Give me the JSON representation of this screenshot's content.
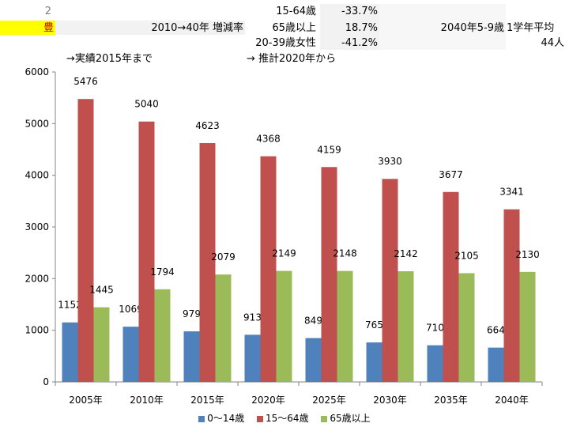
{
  "sheet": {
    "row1": {
      "num": "2",
      "label": "15-64歳",
      "value": "-33.7%"
    },
    "row2": {
      "name": "豊",
      "title": "2010→40年 増減率",
      "label": "65歳以上",
      "value": "18.7%",
      "extra_label": "2040年5-9歳",
      "extra_title": "1学年平均"
    },
    "row3": {
      "label": "20-39歳女性",
      "value": "-41.2%",
      "extra_value": "44人"
    },
    "note_left": "→実績2015年まで",
    "note_right": "→ 推計2020年から"
  },
  "colors": {
    "highlight": "#ffff00",
    "s0": "#4f81bd",
    "s1": "#c0504d",
    "s2": "#9bbb59"
  },
  "chart_data": {
    "type": "bar",
    "categories": [
      "2005年",
      "2010年",
      "2015年",
      "2020年",
      "2025年",
      "2030年",
      "2035年",
      "2040年"
    ],
    "series": [
      {
        "name": "0～14歳",
        "values": [
          1152,
          1069,
          979,
          913,
          849,
          765,
          710,
          664
        ]
      },
      {
        "name": "15～64歳",
        "values": [
          5476,
          5040,
          4623,
          4368,
          4159,
          3930,
          3677,
          3341
        ]
      },
      {
        "name": "65歳以上",
        "values": [
          1445,
          1794,
          2079,
          2149,
          2148,
          2142,
          2105,
          2130
        ]
      }
    ],
    "ylim": [
      0,
      6000
    ],
    "yticks": [
      "0",
      "1000",
      "2000",
      "3000",
      "4000",
      "5000",
      "6000"
    ],
    "grid": false,
    "legend": "bottom"
  }
}
